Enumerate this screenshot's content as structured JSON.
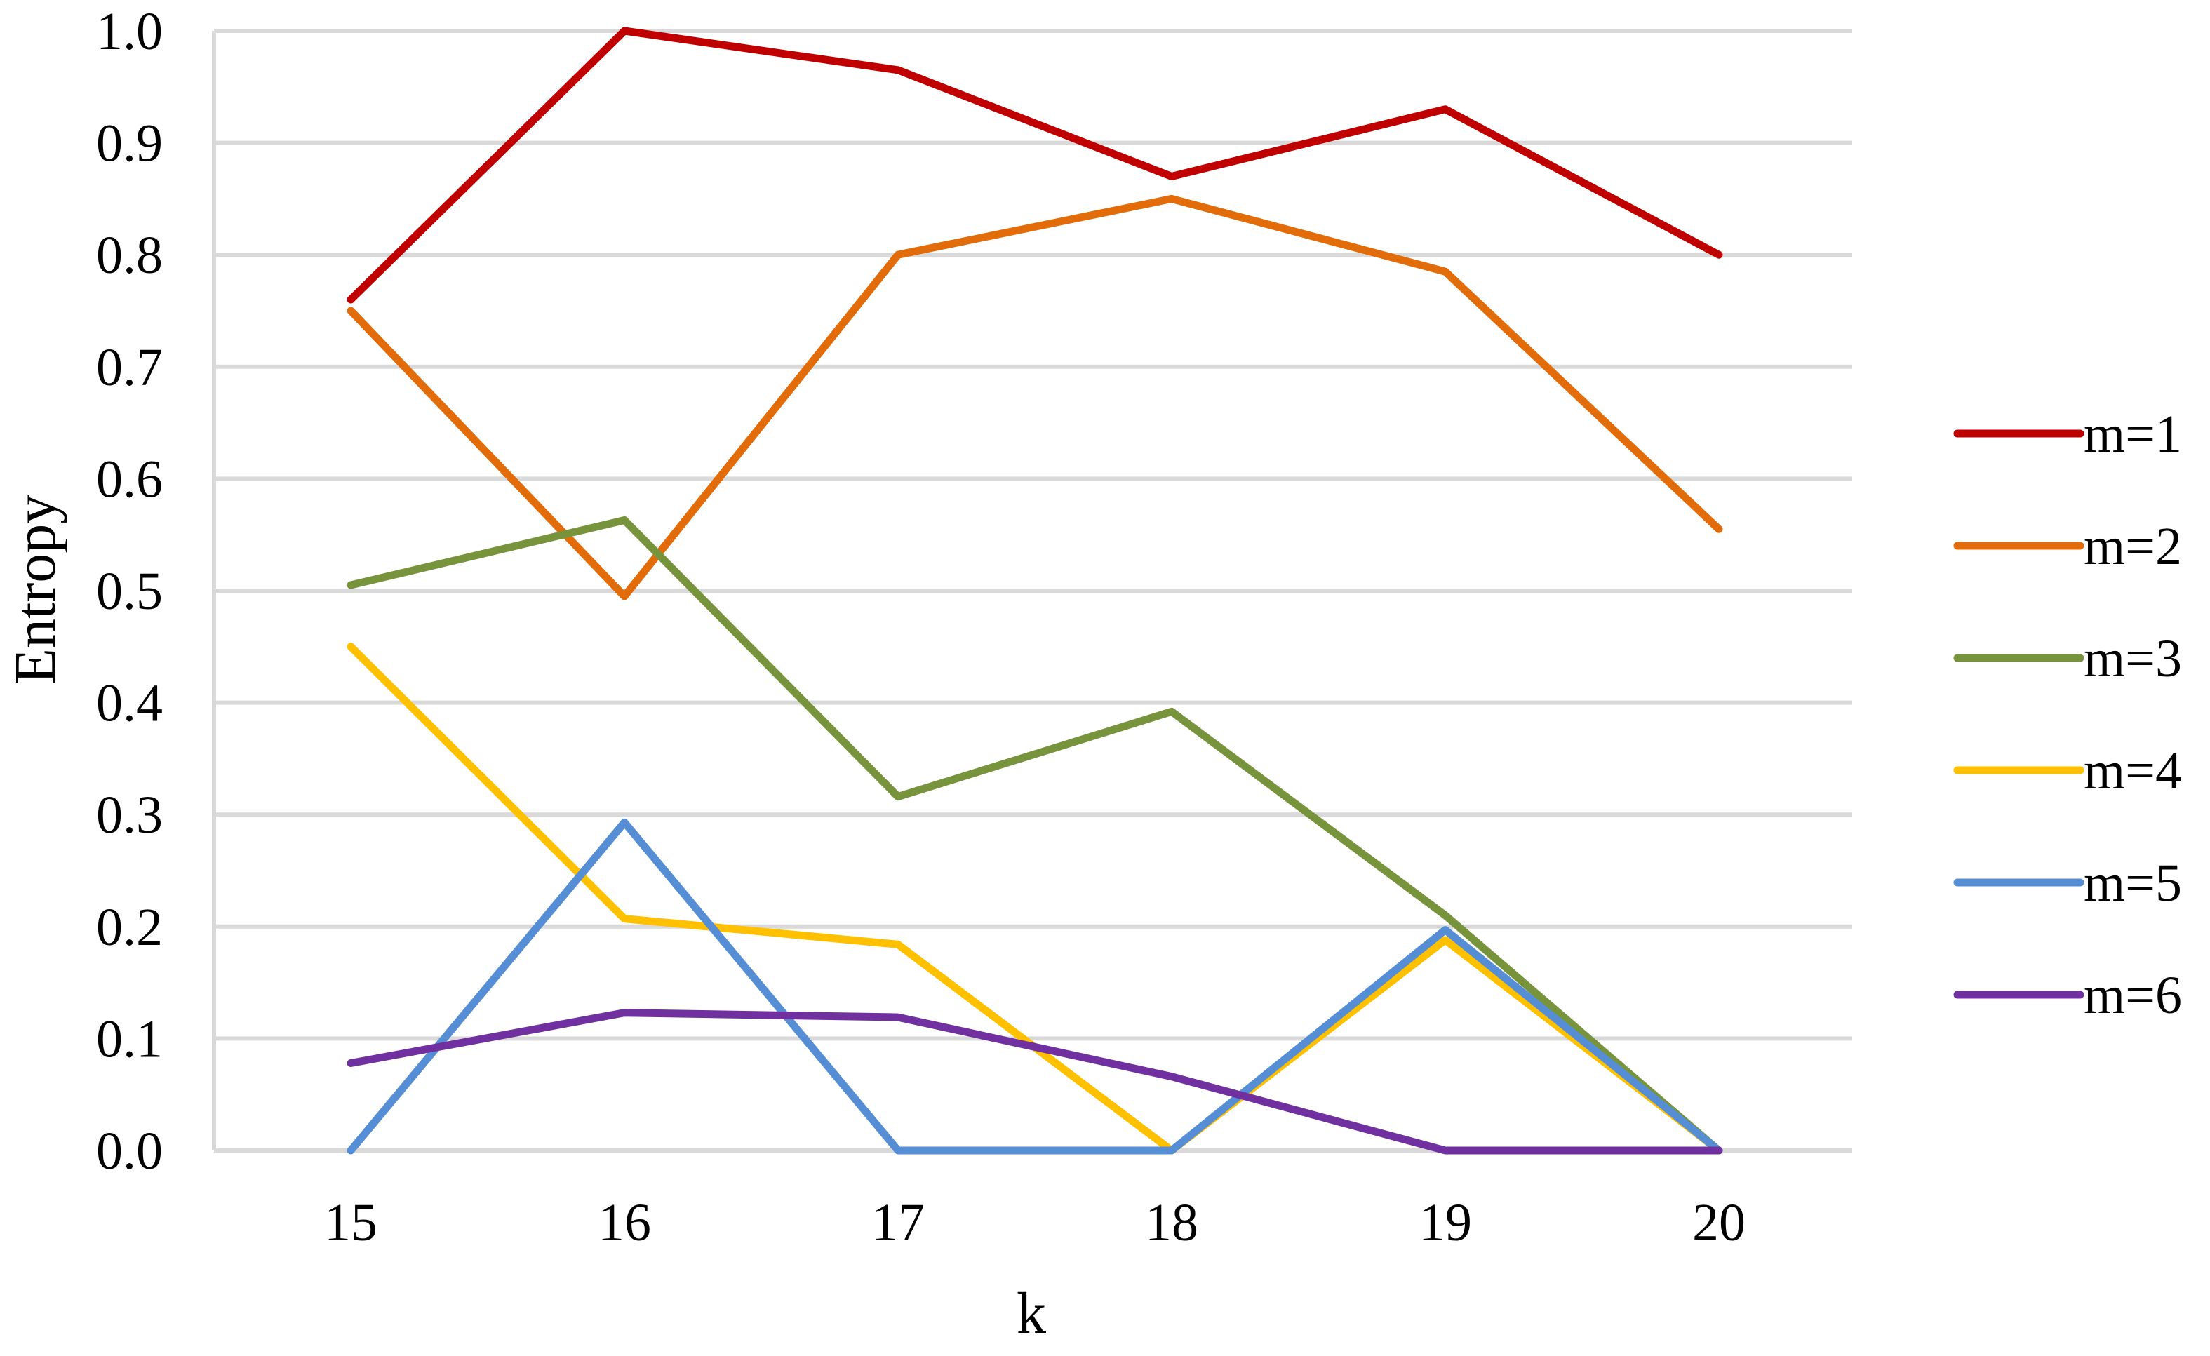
{
  "chart_data": {
    "type": "line",
    "xlabel": "k",
    "ylabel": "Entropy",
    "x": [
      15,
      16,
      17,
      18,
      19,
      20
    ],
    "ylim": [
      0,
      1
    ],
    "yticks": [
      "0.0",
      "0.1",
      "0.2",
      "0.3",
      "0.4",
      "0.5",
      "0.6",
      "0.7",
      "0.8",
      "0.9",
      "1.0"
    ],
    "grid": "horizontal",
    "legend_position": "right",
    "series": [
      {
        "name": "m=1",
        "color": "#c00000",
        "values": [
          0.76,
          1.0,
          0.965,
          0.87,
          0.93,
          0.8
        ]
      },
      {
        "name": "m=2",
        "color": "#e36c0a",
        "values": [
          0.75,
          0.495,
          0.8,
          0.85,
          0.785,
          0.555
        ]
      },
      {
        "name": "m=3",
        "color": "#77933c",
        "values": [
          0.505,
          0.563,
          0.316,
          0.392,
          0.21,
          0.0
        ]
      },
      {
        "name": "m=4",
        "color": "#ffc000",
        "values": [
          0.45,
          0.207,
          0.184,
          0.0,
          0.188,
          0.0
        ]
      },
      {
        "name": "m=5",
        "color": "#558ed5",
        "values": [
          0.0,
          0.293,
          0.0,
          0.0,
          0.197,
          0.0
        ]
      },
      {
        "name": "m=6",
        "color": "#7030a0",
        "values": [
          0.078,
          0.123,
          0.119,
          0.066,
          0.0,
          0.0
        ]
      }
    ]
  }
}
